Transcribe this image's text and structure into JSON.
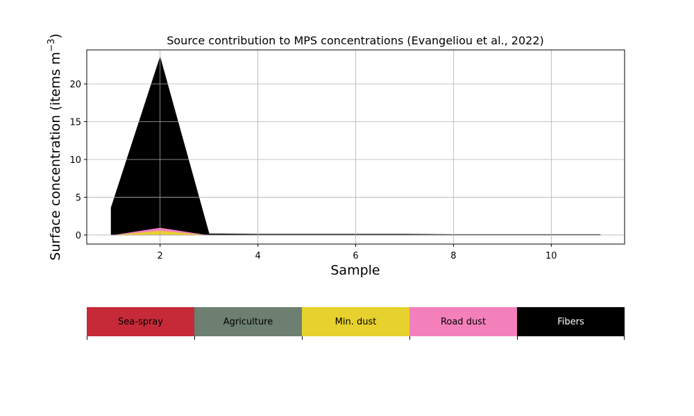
{
  "chart_data": {
    "type": "area",
    "title": "Source contribution to MPS concentrations (Evangeliou et al., 2022)",
    "xlabel": "Sample",
    "ylabel_main": "Surface concentration (items m",
    "ylabel_sup": "−3",
    "ylabel_close": ")",
    "xlim": [
      0.5,
      11.5
    ],
    "ylim": [
      -1.2,
      24.5
    ],
    "xticks": [
      2,
      4,
      6,
      8,
      10
    ],
    "yticks": [
      0,
      5,
      10,
      15,
      20
    ],
    "grid": true,
    "stacked": true,
    "x": [
      1,
      2,
      3,
      4,
      5,
      6,
      7,
      8,
      9,
      10,
      11
    ],
    "series": [
      {
        "name": "Sea-spray",
        "color": "#c62a38",
        "values": [
          0.0,
          0.05,
          0.0,
          0.0,
          0.0,
          0.0,
          0.0,
          0.0,
          0.0,
          0.0,
          0.0
        ]
      },
      {
        "name": "Agriculture",
        "color": "#6c7f70",
        "values": [
          0.0,
          0.05,
          0.0,
          0.0,
          0.0,
          0.0,
          0.0,
          0.0,
          0.0,
          0.0,
          0.0
        ]
      },
      {
        "name": "Min. dust",
        "color": "#e6d12e",
        "values": [
          0.0,
          0.5,
          0.0,
          0.0,
          0.0,
          0.0,
          0.0,
          0.0,
          0.0,
          0.0,
          0.0
        ]
      },
      {
        "name": "Road dust",
        "color": "#f380bb",
        "values": [
          0.0,
          0.4,
          0.0,
          0.0,
          0.0,
          0.0,
          0.0,
          0.0,
          0.0,
          0.0,
          0.0
        ]
      },
      {
        "name": "Fibers",
        "color": "#000000",
        "values": [
          3.6,
          22.5,
          0.15,
          0.1,
          0.1,
          0.1,
          0.1,
          0.05,
          0.05,
          0.05,
          0.05
        ]
      }
    ]
  },
  "legend": {
    "items": [
      {
        "label": "Sea-spray",
        "color": "#c62a38",
        "text_color": "#000000"
      },
      {
        "label": "Agriculture",
        "color": "#6c7f70",
        "text_color": "#000000"
      },
      {
        "label": "Min. dust",
        "color": "#e6d12e",
        "text_color": "#000000"
      },
      {
        "label": "Road dust",
        "color": "#f380bb",
        "text_color": "#000000"
      },
      {
        "label": "Fibers",
        "color": "#000000",
        "text_color": "#ffffff"
      }
    ]
  }
}
